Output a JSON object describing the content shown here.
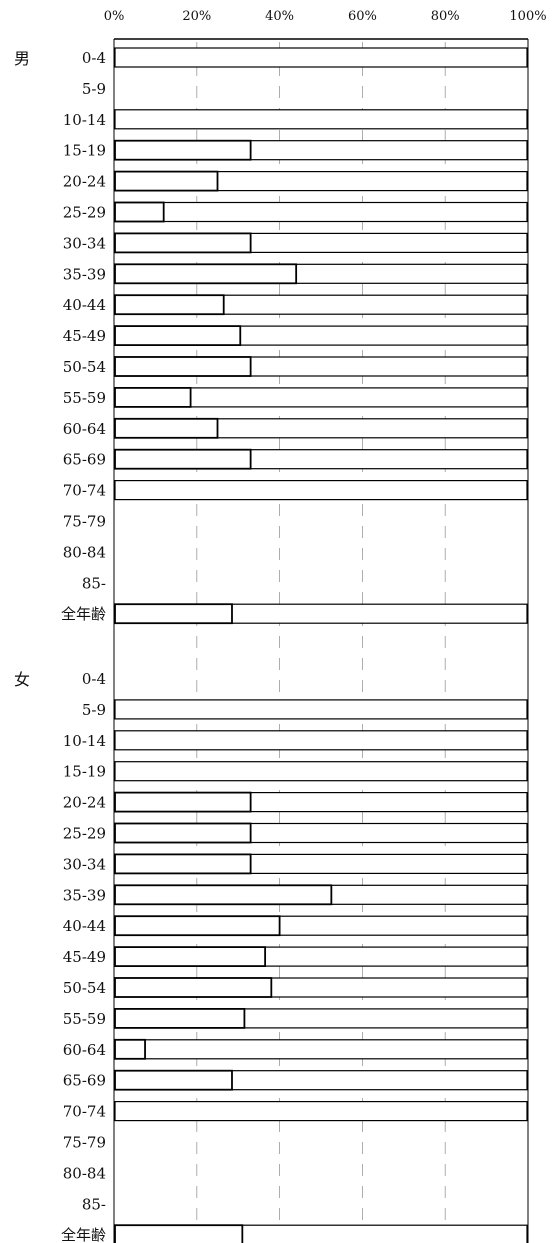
{
  "chart_data": {
    "type": "bar",
    "orientation": "horizontal",
    "stacked_to_100_percent": true,
    "x_ticks": [
      "0%",
      "20%",
      "40%",
      "60%",
      "80%",
      "100%"
    ],
    "xlim": [
      0,
      100
    ],
    "grid": "vertical dashed lines at 20%, 40%, 60%, 80%",
    "groups": [
      {
        "label": "男",
        "rows": [
          {
            "label": "0-4",
            "value": 0,
            "has_data": true
          },
          {
            "label": "5-9",
            "value": null,
            "has_data": false
          },
          {
            "label": "10-14",
            "value": 0,
            "has_data": true
          },
          {
            "label": "15-19",
            "value": 33,
            "has_data": true
          },
          {
            "label": "20-24",
            "value": 25,
            "has_data": true
          },
          {
            "label": "25-29",
            "value": 12,
            "has_data": true
          },
          {
            "label": "30-34",
            "value": 33,
            "has_data": true
          },
          {
            "label": "35-39",
            "value": 44,
            "has_data": true
          },
          {
            "label": "40-44",
            "value": 26.5,
            "has_data": true
          },
          {
            "label": "45-49",
            "value": 30.5,
            "has_data": true
          },
          {
            "label": "50-54",
            "value": 33,
            "has_data": true
          },
          {
            "label": "55-59",
            "value": 18.5,
            "has_data": true
          },
          {
            "label": "60-64",
            "value": 25,
            "has_data": true
          },
          {
            "label": "65-69",
            "value": 33,
            "has_data": true
          },
          {
            "label": "70-74",
            "value": 0,
            "has_data": true
          },
          {
            "label": "75-79",
            "value": null,
            "has_data": false
          },
          {
            "label": "80-84",
            "value": null,
            "has_data": false
          },
          {
            "label": "85-",
            "value": null,
            "has_data": false
          },
          {
            "label": "全年齢",
            "value": 28.5,
            "has_data": true
          }
        ]
      },
      {
        "label": "女",
        "rows": [
          {
            "label": "0-4",
            "value": null,
            "has_data": false
          },
          {
            "label": "5-9",
            "value": 0,
            "has_data": true
          },
          {
            "label": "10-14",
            "value": 0,
            "has_data": true
          },
          {
            "label": "15-19",
            "value": 0,
            "has_data": true
          },
          {
            "label": "20-24",
            "value": 33,
            "has_data": true
          },
          {
            "label": "25-29",
            "value": 33,
            "has_data": true
          },
          {
            "label": "30-34",
            "value": 33,
            "has_data": true
          },
          {
            "label": "35-39",
            "value": 52.5,
            "has_data": true
          },
          {
            "label": "40-44",
            "value": 40,
            "has_data": true
          },
          {
            "label": "45-49",
            "value": 36.5,
            "has_data": true
          },
          {
            "label": "50-54",
            "value": 38,
            "has_data": true
          },
          {
            "label": "55-59",
            "value": 31.5,
            "has_data": true
          },
          {
            "label": "60-64",
            "value": 7.5,
            "has_data": true
          },
          {
            "label": "65-69",
            "value": 28.5,
            "has_data": true
          },
          {
            "label": "70-74",
            "value": 0,
            "has_data": true
          },
          {
            "label": "75-79",
            "value": null,
            "has_data": false
          },
          {
            "label": "80-84",
            "value": null,
            "has_data": false
          },
          {
            "label": "85-",
            "value": null,
            "has_data": false
          },
          {
            "label": "全年齢",
            "value": 31,
            "has_data": true
          }
        ]
      }
    ]
  }
}
